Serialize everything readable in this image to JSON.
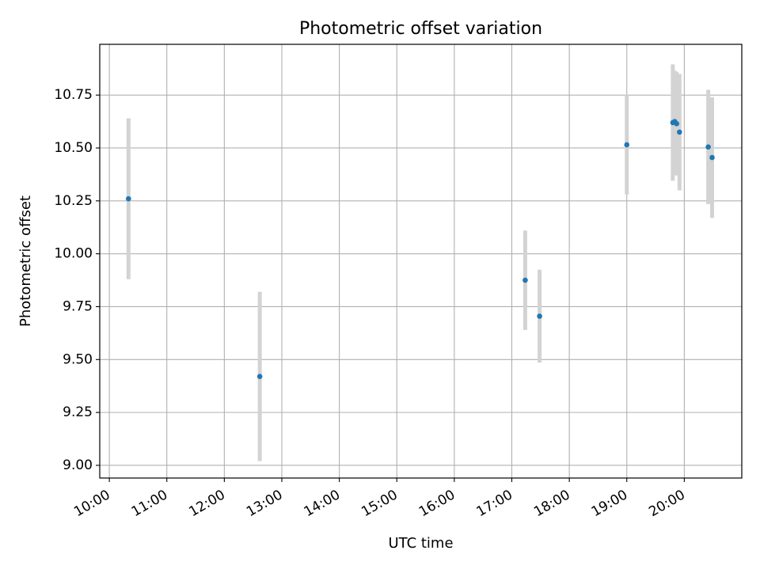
{
  "chart_data": {
    "type": "scatter",
    "title": "Photometric offset variation",
    "xlabel": "UTC time",
    "ylabel": "Photometric offset",
    "x_tick_labels": [
      "10:00",
      "11:00",
      "12:00",
      "13:00",
      "14:00",
      "15:00",
      "16:00",
      "17:00",
      "18:00",
      "19:00",
      "20:00"
    ],
    "x_tick_hours": [
      10,
      11,
      12,
      13,
      14,
      15,
      16,
      17,
      18,
      19,
      20
    ],
    "y_tick_labels": [
      "9.00",
      "9.25",
      "9.50",
      "9.75",
      "10.00",
      "10.25",
      "10.50",
      "10.75"
    ],
    "y_tick_values": [
      9.0,
      9.25,
      9.5,
      9.75,
      10.0,
      10.25,
      10.5,
      10.75
    ],
    "xlim": [
      "09:50",
      "21:00"
    ],
    "ylim": [
      8.94,
      10.99
    ],
    "grid": true,
    "points": [
      {
        "x": "10:20",
        "y": 10.26,
        "err": 0.38
      },
      {
        "x": "12:37",
        "y": 9.42,
        "err": 0.4
      },
      {
        "x": "17:14",
        "y": 9.875,
        "err": 0.235
      },
      {
        "x": "17:29",
        "y": 9.705,
        "err": 0.22
      },
      {
        "x": "19:00",
        "y": 10.515,
        "err": 0.235
      },
      {
        "x": "19:48",
        "y": 10.62,
        "err": 0.275
      },
      {
        "x": "19:50",
        "y": 10.625,
        "err": 0.24
      },
      {
        "x": "19:52",
        "y": 10.615,
        "err": 0.245
      },
      {
        "x": "19:55",
        "y": 10.575,
        "err": 0.275
      },
      {
        "x": "20:25",
        "y": 10.505,
        "err": 0.27
      },
      {
        "x": "20:29",
        "y": 10.455,
        "err": 0.285
      }
    ],
    "colors": {
      "point": "#1f77b4",
      "errorbar": "#d3d3d3",
      "grid": "#b0b0b0",
      "axis": "#000000"
    }
  }
}
